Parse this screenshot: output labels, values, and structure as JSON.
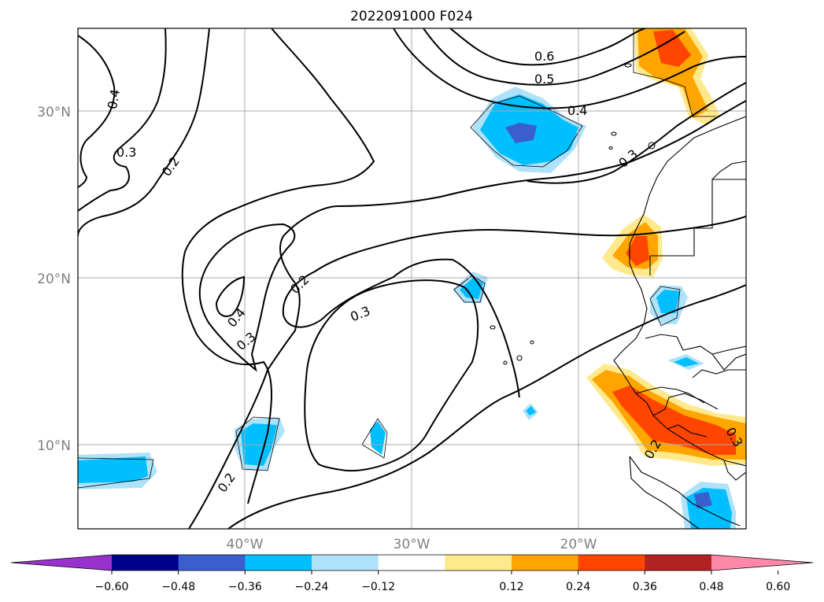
{
  "title": "2022091000 F024",
  "map": {
    "lat_range": [
      5,
      35
    ],
    "lon_range": [
      -50,
      -10
    ],
    "grid": true,
    "latitude_labels": [
      "30°N",
      "20°N",
      "10°N"
    ],
    "longitude_labels": [
      "40°W",
      "30°W",
      "20°W"
    ],
    "contour_labels": [
      "0.6",
      "0.5",
      "0.4",
      "0.4",
      "0.3",
      "0.3",
      "0.2",
      "0.4",
      "0.3",
      "0.2",
      "0.3",
      "0.2",
      "0.2",
      "0.3"
    ],
    "colors": {
      "ocean_background": "#ffffff",
      "contour_line": "#000000",
      "grid_line": "#aaaaaa",
      "coastline": "#000000"
    }
  },
  "colorbar": {
    "orientation": "horizontal",
    "extend": "both",
    "tick_labels": [
      "−0.60",
      "−0.48",
      "−0.36",
      "−0.24",
      "−0.12",
      "0.12",
      "0.24",
      "0.36",
      "0.48",
      "0.60"
    ],
    "colors": [
      "#9932cc",
      "#00008b",
      "#3a5fcd",
      "#00bfff",
      "#aee2fa",
      "#ffffff",
      "#ffe98c",
      "#ffa500",
      "#ff4500",
      "#b22222",
      "#ff88aa"
    ]
  }
}
